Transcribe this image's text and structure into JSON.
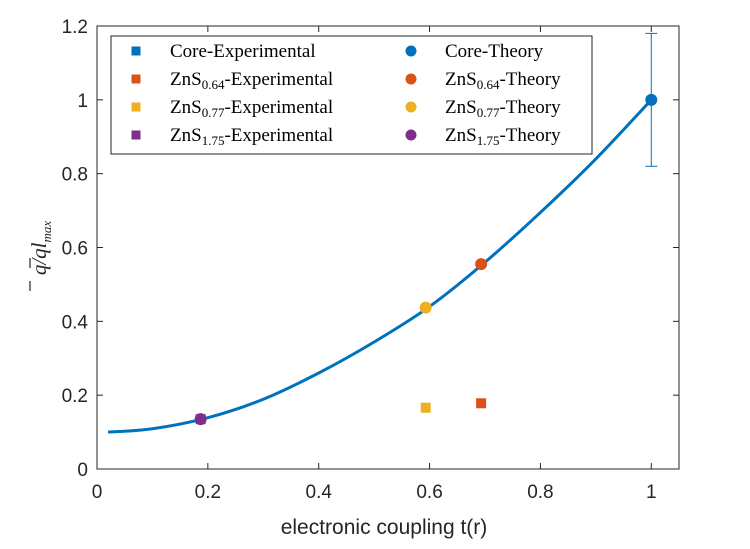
{
  "chart_data": {
    "type": "scatter",
    "xlabel": "electronic coupling t(r)",
    "ylabel": {
      "q1": "q",
      "slash": "/",
      "q2": "q",
      "tail": "l",
      "sub": "max"
    },
    "xlim": [
      0,
      1.05
    ],
    "ylim": [
      0,
      1.2
    ],
    "xticks": [
      "0",
      "0.2",
      "0.4",
      "0.6",
      "0.8",
      "1"
    ],
    "yticks": [
      "0",
      "0.2",
      "0.4",
      "0.6",
      "0.8",
      "1",
      "1.2"
    ],
    "grid": false,
    "legend_position": "top-left",
    "colors": {
      "core": "#0072BD",
      "zns064": "#D95319",
      "zns077": "#EDB120",
      "zns175": "#7E2F8E",
      "curve": "#0072BD",
      "axis": "#262626"
    },
    "curve": {
      "x": [
        0.02,
        0.1,
        0.2,
        0.3,
        0.4,
        0.5,
        0.6,
        0.7,
        0.8,
        0.9,
        1.0
      ],
      "y": [
        0.1,
        0.109,
        0.139,
        0.189,
        0.26,
        0.344,
        0.44,
        0.56,
        0.695,
        0.84,
        1.0
      ]
    },
    "series": [
      {
        "key": "core_exp",
        "base": "Core-Experimental",
        "sub": "",
        "suffix": "",
        "marker": "square",
        "color": "#0072BD",
        "points": []
      },
      {
        "key": "zns064_exp",
        "base": "ZnS",
        "sub": "0.64",
        "suffix": "-Experimental",
        "marker": "square",
        "color": "#D95319",
        "points": [
          [
            0.693,
            0.178
          ]
        ]
      },
      {
        "key": "zns077_exp",
        "base": "ZnS",
        "sub": "0.77",
        "suffix": "-Experimental",
        "marker": "square",
        "color": "#EDB120",
        "points": [
          [
            0.593,
            0.166
          ]
        ]
      },
      {
        "key": "zns175_exp",
        "base": "ZnS",
        "sub": "1.75",
        "suffix": "-Experimental",
        "marker": "square",
        "color": "#7E2F8E",
        "points": [
          [
            0.187,
            0.135
          ]
        ]
      },
      {
        "key": "core_th",
        "base": "Core-Theory",
        "sub": "",
        "suffix": "",
        "marker": "circle",
        "color": "#0072BD",
        "points": [
          [
            1.0,
            1.0
          ]
        ]
      },
      {
        "key": "zns064_th",
        "base": "ZnS",
        "sub": "0.64",
        "suffix": "-Theory",
        "marker": "circle",
        "color": "#D95319",
        "points": [
          [
            0.693,
            0.555
          ]
        ]
      },
      {
        "key": "zns077_th",
        "base": "ZnS",
        "sub": "0.77",
        "suffix": "-Theory",
        "marker": "circle",
        "color": "#EDB120",
        "points": [
          [
            0.593,
            0.437
          ]
        ]
      },
      {
        "key": "zns175_th",
        "base": "ZnS",
        "sub": "1.75",
        "suffix": "-Theory",
        "marker": "circle",
        "color": "#7E2F8E",
        "points": [
          [
            0.187,
            0.135
          ]
        ]
      }
    ],
    "errorbar": {
      "x": 1.0,
      "y": 1.0,
      "low": 0.82,
      "high": 1.18,
      "color": "#0072BD"
    }
  }
}
